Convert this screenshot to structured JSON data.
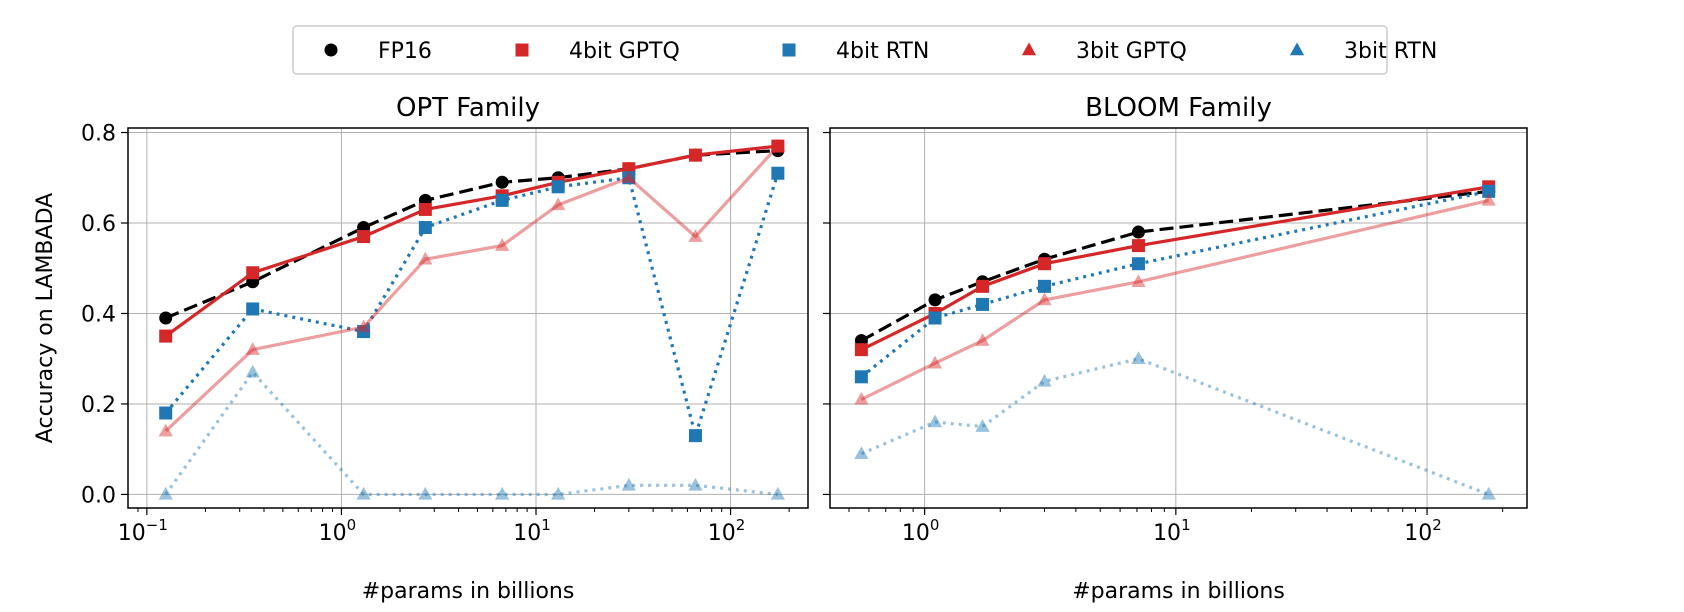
{
  "legend": {
    "placement": "top-center",
    "entries": [
      {
        "label": "FP16",
        "color": "#000000",
        "marker": "circle"
      },
      {
        "label": "4bit GPTQ",
        "color": "#d62728",
        "marker": "square"
      },
      {
        "label": "4bit RTN",
        "color": "#1f77b4",
        "marker": "square"
      },
      {
        "label": "3bit GPTQ",
        "color": "#d62728",
        "marker": "triangle"
      },
      {
        "label": "3bit RTN",
        "color": "#1f77b4",
        "marker": "triangle"
      }
    ]
  },
  "chart_data": [
    {
      "type": "line",
      "title": "OPT Family",
      "xlabel": "#params in billions",
      "ylabel": "Accuracy on LAMBADA",
      "xscale": "log",
      "xlim": [
        0.08,
        250
      ],
      "ylim": [
        -0.03,
        0.81
      ],
      "xticks": [
        {
          "value": 0.1,
          "base": "10",
          "exp": "−1"
        },
        {
          "value": 1,
          "base": "10",
          "exp": "0"
        },
        {
          "value": 10,
          "base": "10",
          "exp": "1"
        },
        {
          "value": 100,
          "base": "10",
          "exp": "2"
        }
      ],
      "yticks": [
        {
          "value": 0.0,
          "label": "0.0"
        },
        {
          "value": 0.2,
          "label": "0.2"
        },
        {
          "value": 0.4,
          "label": "0.4"
        },
        {
          "value": 0.6,
          "label": "0.6"
        },
        {
          "value": 0.8,
          "label": "0.8"
        }
      ],
      "grid": true,
      "x": [
        0.125,
        0.35,
        1.3,
        2.7,
        6.7,
        13,
        30,
        66,
        175
      ],
      "series": [
        {
          "name": "FP16",
          "color": "#000000",
          "marker": "circle",
          "line": "dashed",
          "opacity": 1,
          "values": [
            0.39,
            0.47,
            0.59,
            0.65,
            0.69,
            0.7,
            0.72,
            0.75,
            0.76
          ]
        },
        {
          "name": "4bit GPTQ",
          "color": "#d62728",
          "marker": "square",
          "line": "solid",
          "opacity": 1,
          "values": [
            0.35,
            0.49,
            0.57,
            0.63,
            0.66,
            0.69,
            0.72,
            0.75,
            0.77
          ]
        },
        {
          "name": "4bit RTN",
          "color": "#1f77b4",
          "marker": "square",
          "line": "dotted",
          "opacity": 1,
          "values": [
            0.18,
            0.41,
            0.36,
            0.59,
            0.65,
            0.68,
            0.7,
            0.13,
            0.71
          ]
        },
        {
          "name": "3bit GPTQ",
          "color": "#d62728",
          "marker": "triangle",
          "line": "solid",
          "opacity": 0.45,
          "values": [
            0.14,
            0.32,
            0.37,
            0.52,
            0.55,
            0.64,
            0.7,
            0.57,
            0.77
          ]
        },
        {
          "name": "3bit RTN",
          "color": "#1f77b4",
          "marker": "triangle",
          "line": "dotted",
          "opacity": 0.45,
          "values": [
            0.0,
            0.27,
            0.0,
            0.0,
            0.0,
            0.0,
            0.02,
            0.02,
            0.0
          ]
        }
      ]
    },
    {
      "type": "line",
      "title": "BLOOM Family",
      "xlabel": "#params in billions",
      "ylabel": "",
      "xscale": "log",
      "xlim": [
        0.42,
        250
      ],
      "ylim": [
        -0.03,
        0.81
      ],
      "xticks": [
        {
          "value": 1,
          "base": "10",
          "exp": "0"
        },
        {
          "value": 10,
          "base": "10",
          "exp": "1"
        },
        {
          "value": 100,
          "base": "10",
          "exp": "2"
        }
      ],
      "yticks": [],
      "grid": true,
      "x": [
        0.56,
        1.1,
        1.7,
        3.0,
        7.1,
        176
      ],
      "series": [
        {
          "name": "FP16",
          "color": "#000000",
          "marker": "circle",
          "line": "dashed",
          "opacity": 1,
          "values": [
            0.34,
            0.43,
            0.47,
            0.52,
            0.58,
            0.67
          ]
        },
        {
          "name": "4bit GPTQ",
          "color": "#d62728",
          "marker": "square",
          "line": "solid",
          "opacity": 1,
          "values": [
            0.32,
            0.4,
            0.46,
            0.51,
            0.55,
            0.68
          ]
        },
        {
          "name": "4bit RTN",
          "color": "#1f77b4",
          "marker": "square",
          "line": "dotted",
          "opacity": 1,
          "values": [
            0.26,
            0.39,
            0.42,
            0.46,
            0.51,
            0.67
          ]
        },
        {
          "name": "3bit GPTQ",
          "color": "#d62728",
          "marker": "triangle",
          "line": "solid",
          "opacity": 0.45,
          "values": [
            0.21,
            0.29,
            0.34,
            0.43,
            0.47,
            0.65
          ]
        },
        {
          "name": "3bit RTN",
          "color": "#1f77b4",
          "marker": "triangle",
          "line": "dotted",
          "opacity": 0.45,
          "values": [
            0.09,
            0.16,
            0.15,
            0.25,
            0.3,
            0.0
          ]
        }
      ]
    }
  ]
}
